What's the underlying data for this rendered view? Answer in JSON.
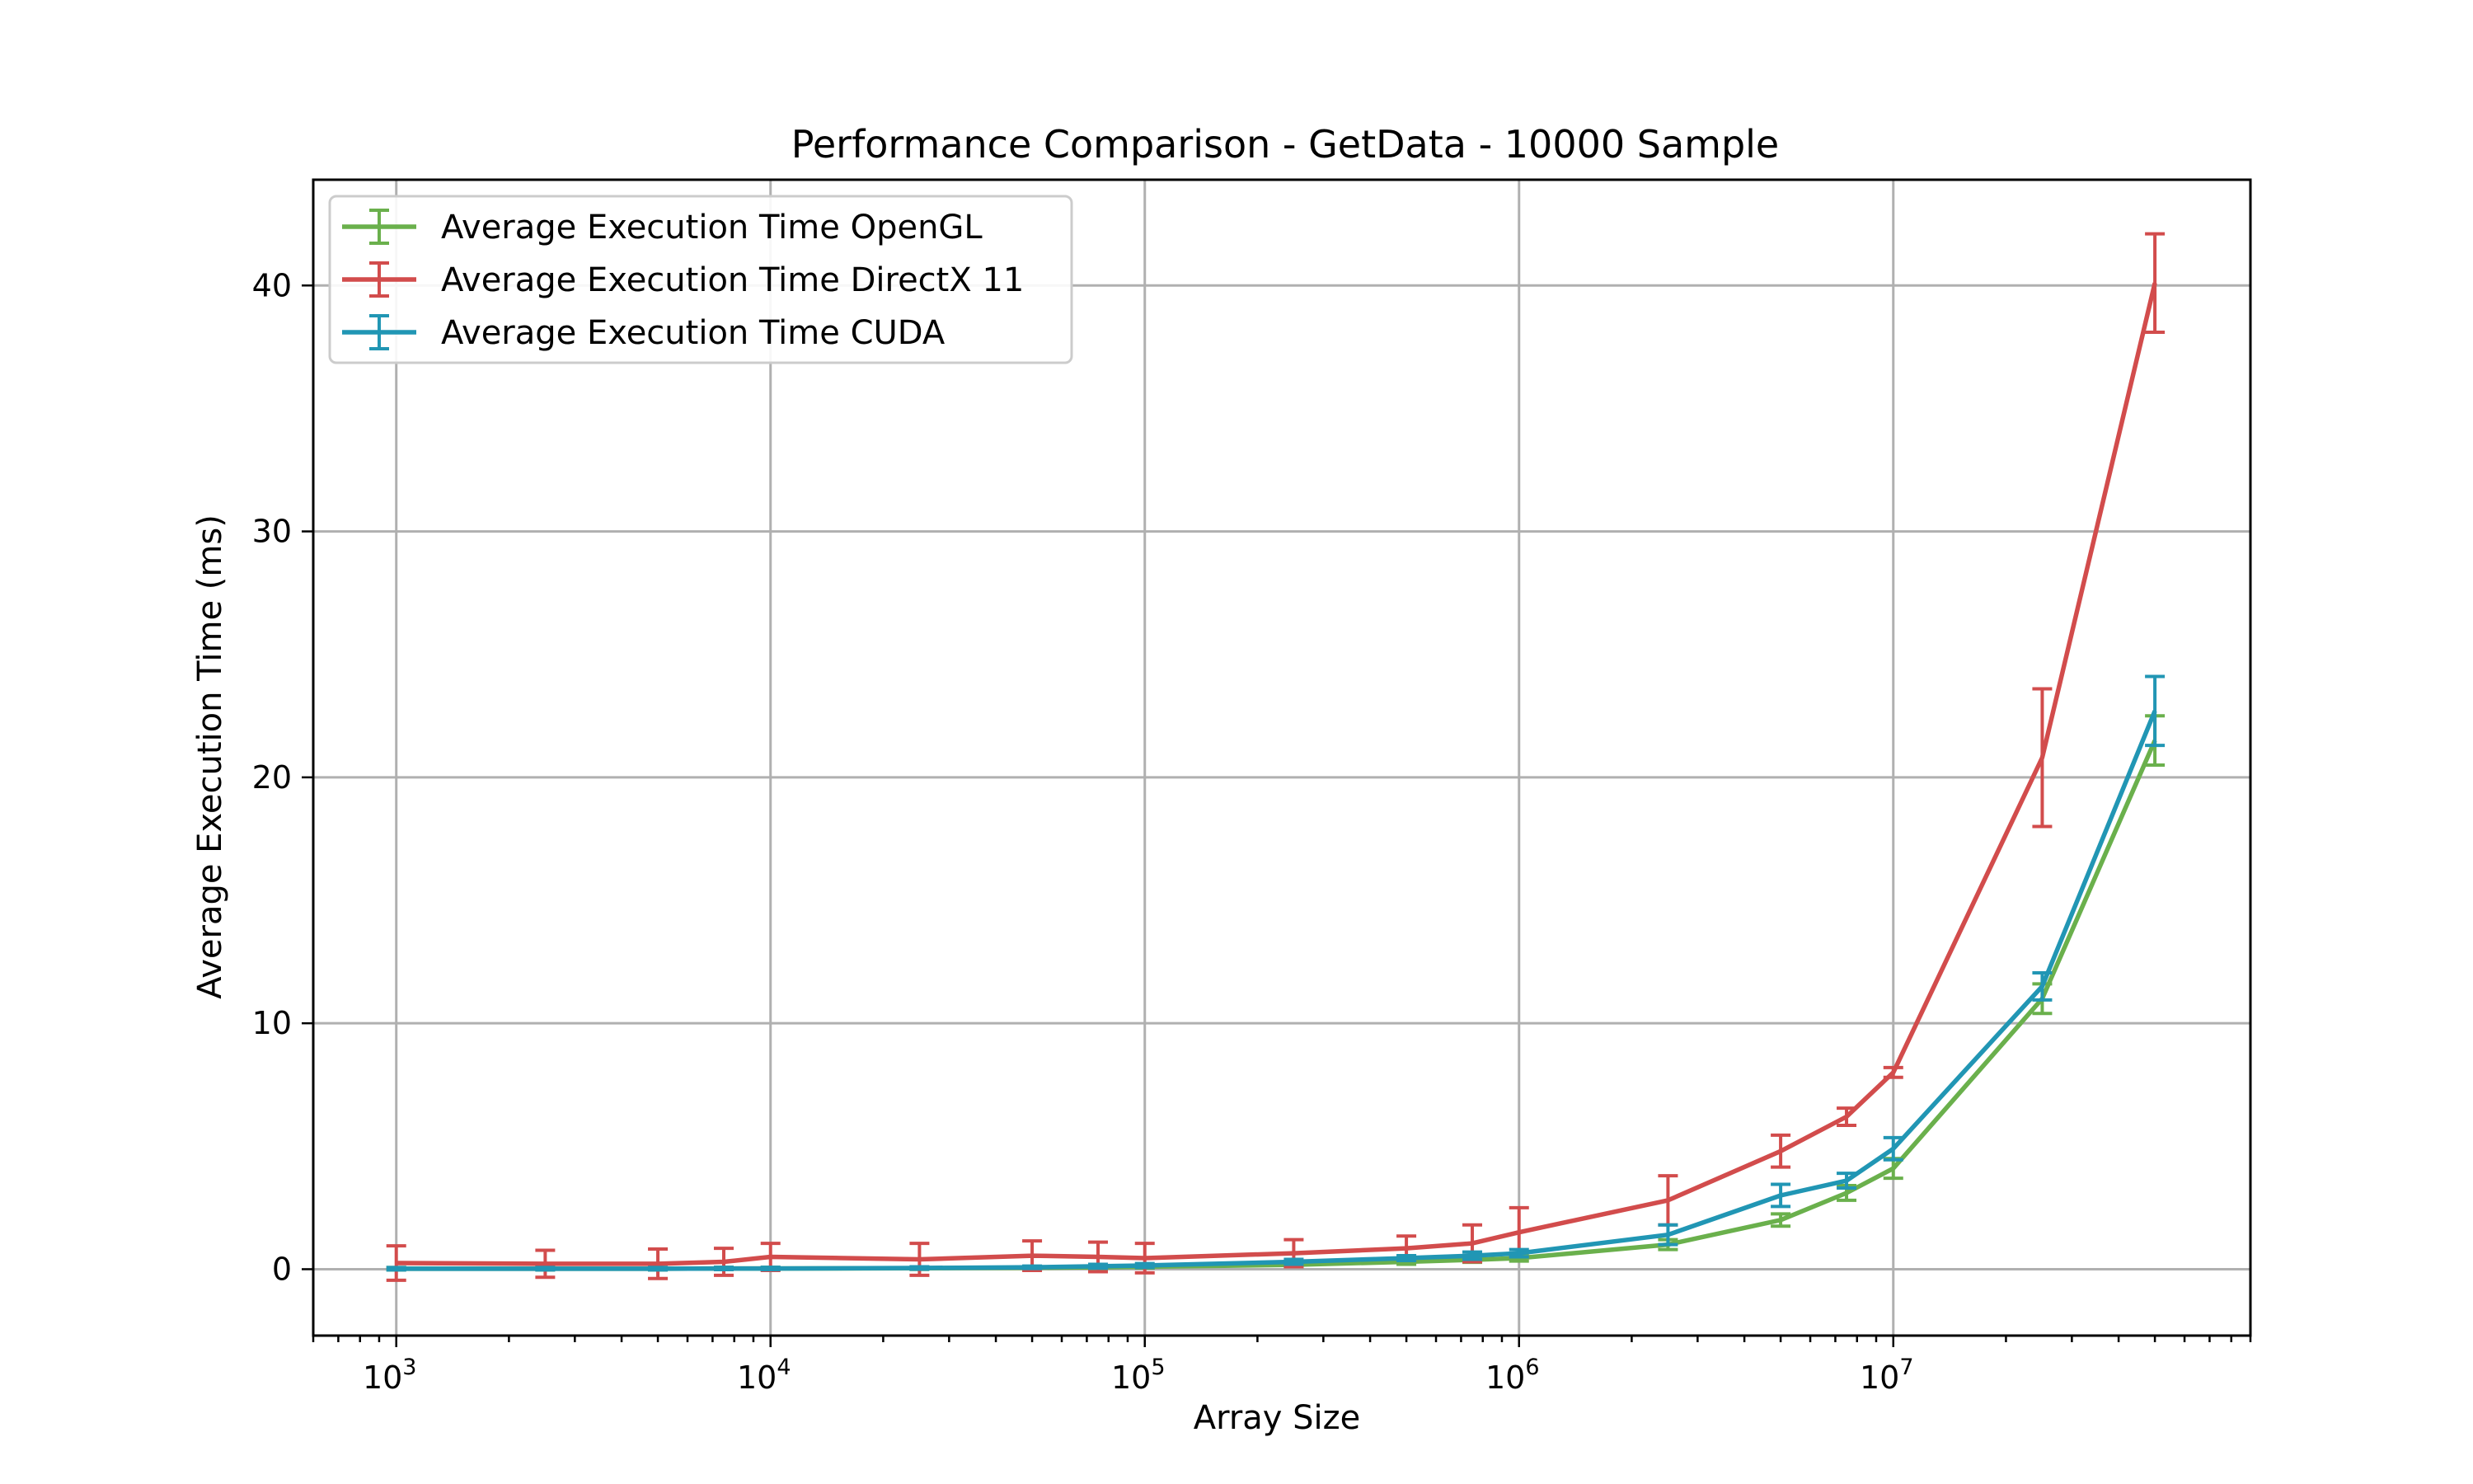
{
  "chart_data": {
    "type": "line",
    "title": "Performance Comparison - GetData - 10000 Sample",
    "xlabel": "Array Size",
    "ylabel": "Average Execution Time (ms)",
    "x_scale": "log",
    "xlim": [
      600,
      90000000
    ],
    "ylim": [
      -2.7,
      44.3
    ],
    "grid": true,
    "legend_position": "upper-left",
    "x_major_ticks": [
      1000,
      10000,
      100000,
      1000000,
      10000000
    ],
    "x_tick_labels": [
      {
        "base": "10",
        "exp": "3"
      },
      {
        "base": "10",
        "exp": "4"
      },
      {
        "base": "10",
        "exp": "5"
      },
      {
        "base": "10",
        "exp": "6"
      },
      {
        "base": "10",
        "exp": "7"
      }
    ],
    "y_ticks": [
      0,
      10,
      20,
      30,
      40
    ],
    "y_tick_labels": [
      "0",
      "10",
      "20",
      "30",
      "40"
    ],
    "x": [
      1000,
      2500,
      5000,
      7500,
      10000,
      25000,
      50000,
      75000,
      100000,
      250000,
      500000,
      750000,
      1000000,
      2500000,
      5000000,
      7500000,
      10000000,
      25000000,
      50000000
    ],
    "series": [
      {
        "name": "Average Execution Time OpenGL",
        "color": "#6ab04c",
        "values": [
          0.02,
          0.02,
          0.02,
          0.03,
          0.03,
          0.04,
          0.06,
          0.08,
          0.1,
          0.18,
          0.3,
          0.38,
          0.45,
          1.0,
          2.0,
          3.1,
          4.1,
          11.0,
          21.5
        ],
        "errors": [
          0.05,
          0.05,
          0.05,
          0.05,
          0.05,
          0.05,
          0.05,
          0.05,
          0.05,
          0.08,
          0.1,
          0.1,
          0.12,
          0.2,
          0.25,
          0.3,
          0.4,
          0.6,
          1.0
        ]
      },
      {
        "name": "Average Execution Time DirectX 11",
        "color": "#d24c4c",
        "values": [
          0.25,
          0.22,
          0.22,
          0.3,
          0.5,
          0.4,
          0.55,
          0.5,
          0.45,
          0.65,
          0.85,
          1.05,
          1.5,
          2.8,
          4.8,
          6.2,
          8.0,
          20.8,
          40.1
        ],
        "errors": [
          0.7,
          0.55,
          0.6,
          0.55,
          0.55,
          0.65,
          0.6,
          0.6,
          0.6,
          0.55,
          0.5,
          0.75,
          1.0,
          1.0,
          0.65,
          0.35,
          0.2,
          2.8,
          2.0
        ]
      },
      {
        "name": "Average Execution Time CUDA",
        "color": "#2196b4",
        "values": [
          0.02,
          0.02,
          0.02,
          0.03,
          0.03,
          0.05,
          0.08,
          0.12,
          0.15,
          0.3,
          0.45,
          0.55,
          0.65,
          1.4,
          3.0,
          3.6,
          4.9,
          11.5,
          22.7
        ],
        "errors": [
          0.05,
          0.05,
          0.05,
          0.05,
          0.05,
          0.05,
          0.05,
          0.08,
          0.08,
          0.1,
          0.1,
          0.15,
          0.15,
          0.4,
          0.45,
          0.3,
          0.45,
          0.55,
          1.4
        ]
      }
    ]
  }
}
